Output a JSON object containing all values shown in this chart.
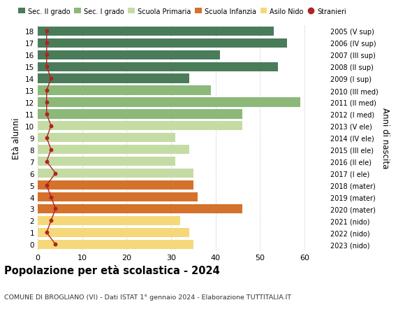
{
  "ages": [
    18,
    17,
    16,
    15,
    14,
    13,
    12,
    11,
    10,
    9,
    8,
    7,
    6,
    5,
    4,
    3,
    2,
    1,
    0
  ],
  "values": [
    53,
    56,
    41,
    54,
    34,
    39,
    59,
    46,
    46,
    31,
    34,
    31,
    35,
    35,
    36,
    46,
    32,
    34,
    35
  ],
  "stranieri": [
    2,
    2,
    2,
    2,
    3,
    2,
    2,
    2,
    3,
    2,
    3,
    2,
    4,
    2,
    3,
    4,
    3,
    2,
    4
  ],
  "right_labels": [
    "2005 (V sup)",
    "2006 (IV sup)",
    "2007 (III sup)",
    "2008 (II sup)",
    "2009 (I sup)",
    "2010 (III med)",
    "2011 (II med)",
    "2012 (I med)",
    "2013 (V ele)",
    "2014 (IV ele)",
    "2015 (III ele)",
    "2016 (II ele)",
    "2017 (I ele)",
    "2018 (mater)",
    "2019 (mater)",
    "2020 (mater)",
    "2021 (nido)",
    "2022 (nido)",
    "2023 (nido)"
  ],
  "bar_colors": [
    "#4a7c59",
    "#4a7c59",
    "#4a7c59",
    "#4a7c59",
    "#4a7c59",
    "#8cb87a",
    "#8cb87a",
    "#8cb87a",
    "#c5dba4",
    "#c5dba4",
    "#c5dba4",
    "#c5dba4",
    "#c5dba4",
    "#d4712a",
    "#d4712a",
    "#d4712a",
    "#f5d87a",
    "#f5d87a",
    "#f5d87a"
  ],
  "legend_labels": [
    "Sec. II grado",
    "Sec. I grado",
    "Scuola Primaria",
    "Scuola Infanzia",
    "Asilo Nido",
    "Stranieri"
  ],
  "legend_colors": [
    "#4a7c59",
    "#8cb87a",
    "#c5dba4",
    "#d4712a",
    "#f5d87a",
    "#b22222"
  ],
  "title": "Popolazione per età scolastica - 2024",
  "subtitle": "COMUNE DI BROGLIANO (VI) - Dati ISTAT 1° gennaio 2024 - Elaborazione TUTTITALIA.IT",
  "ylabel_left": "Età alunni",
  "ylabel_right": "Anni di nascita",
  "xlim": [
    0,
    65
  ],
  "stranieri_color": "#b22222",
  "background_color": "#ffffff",
  "bar_height": 0.78,
  "grid_color": "#cccccc"
}
